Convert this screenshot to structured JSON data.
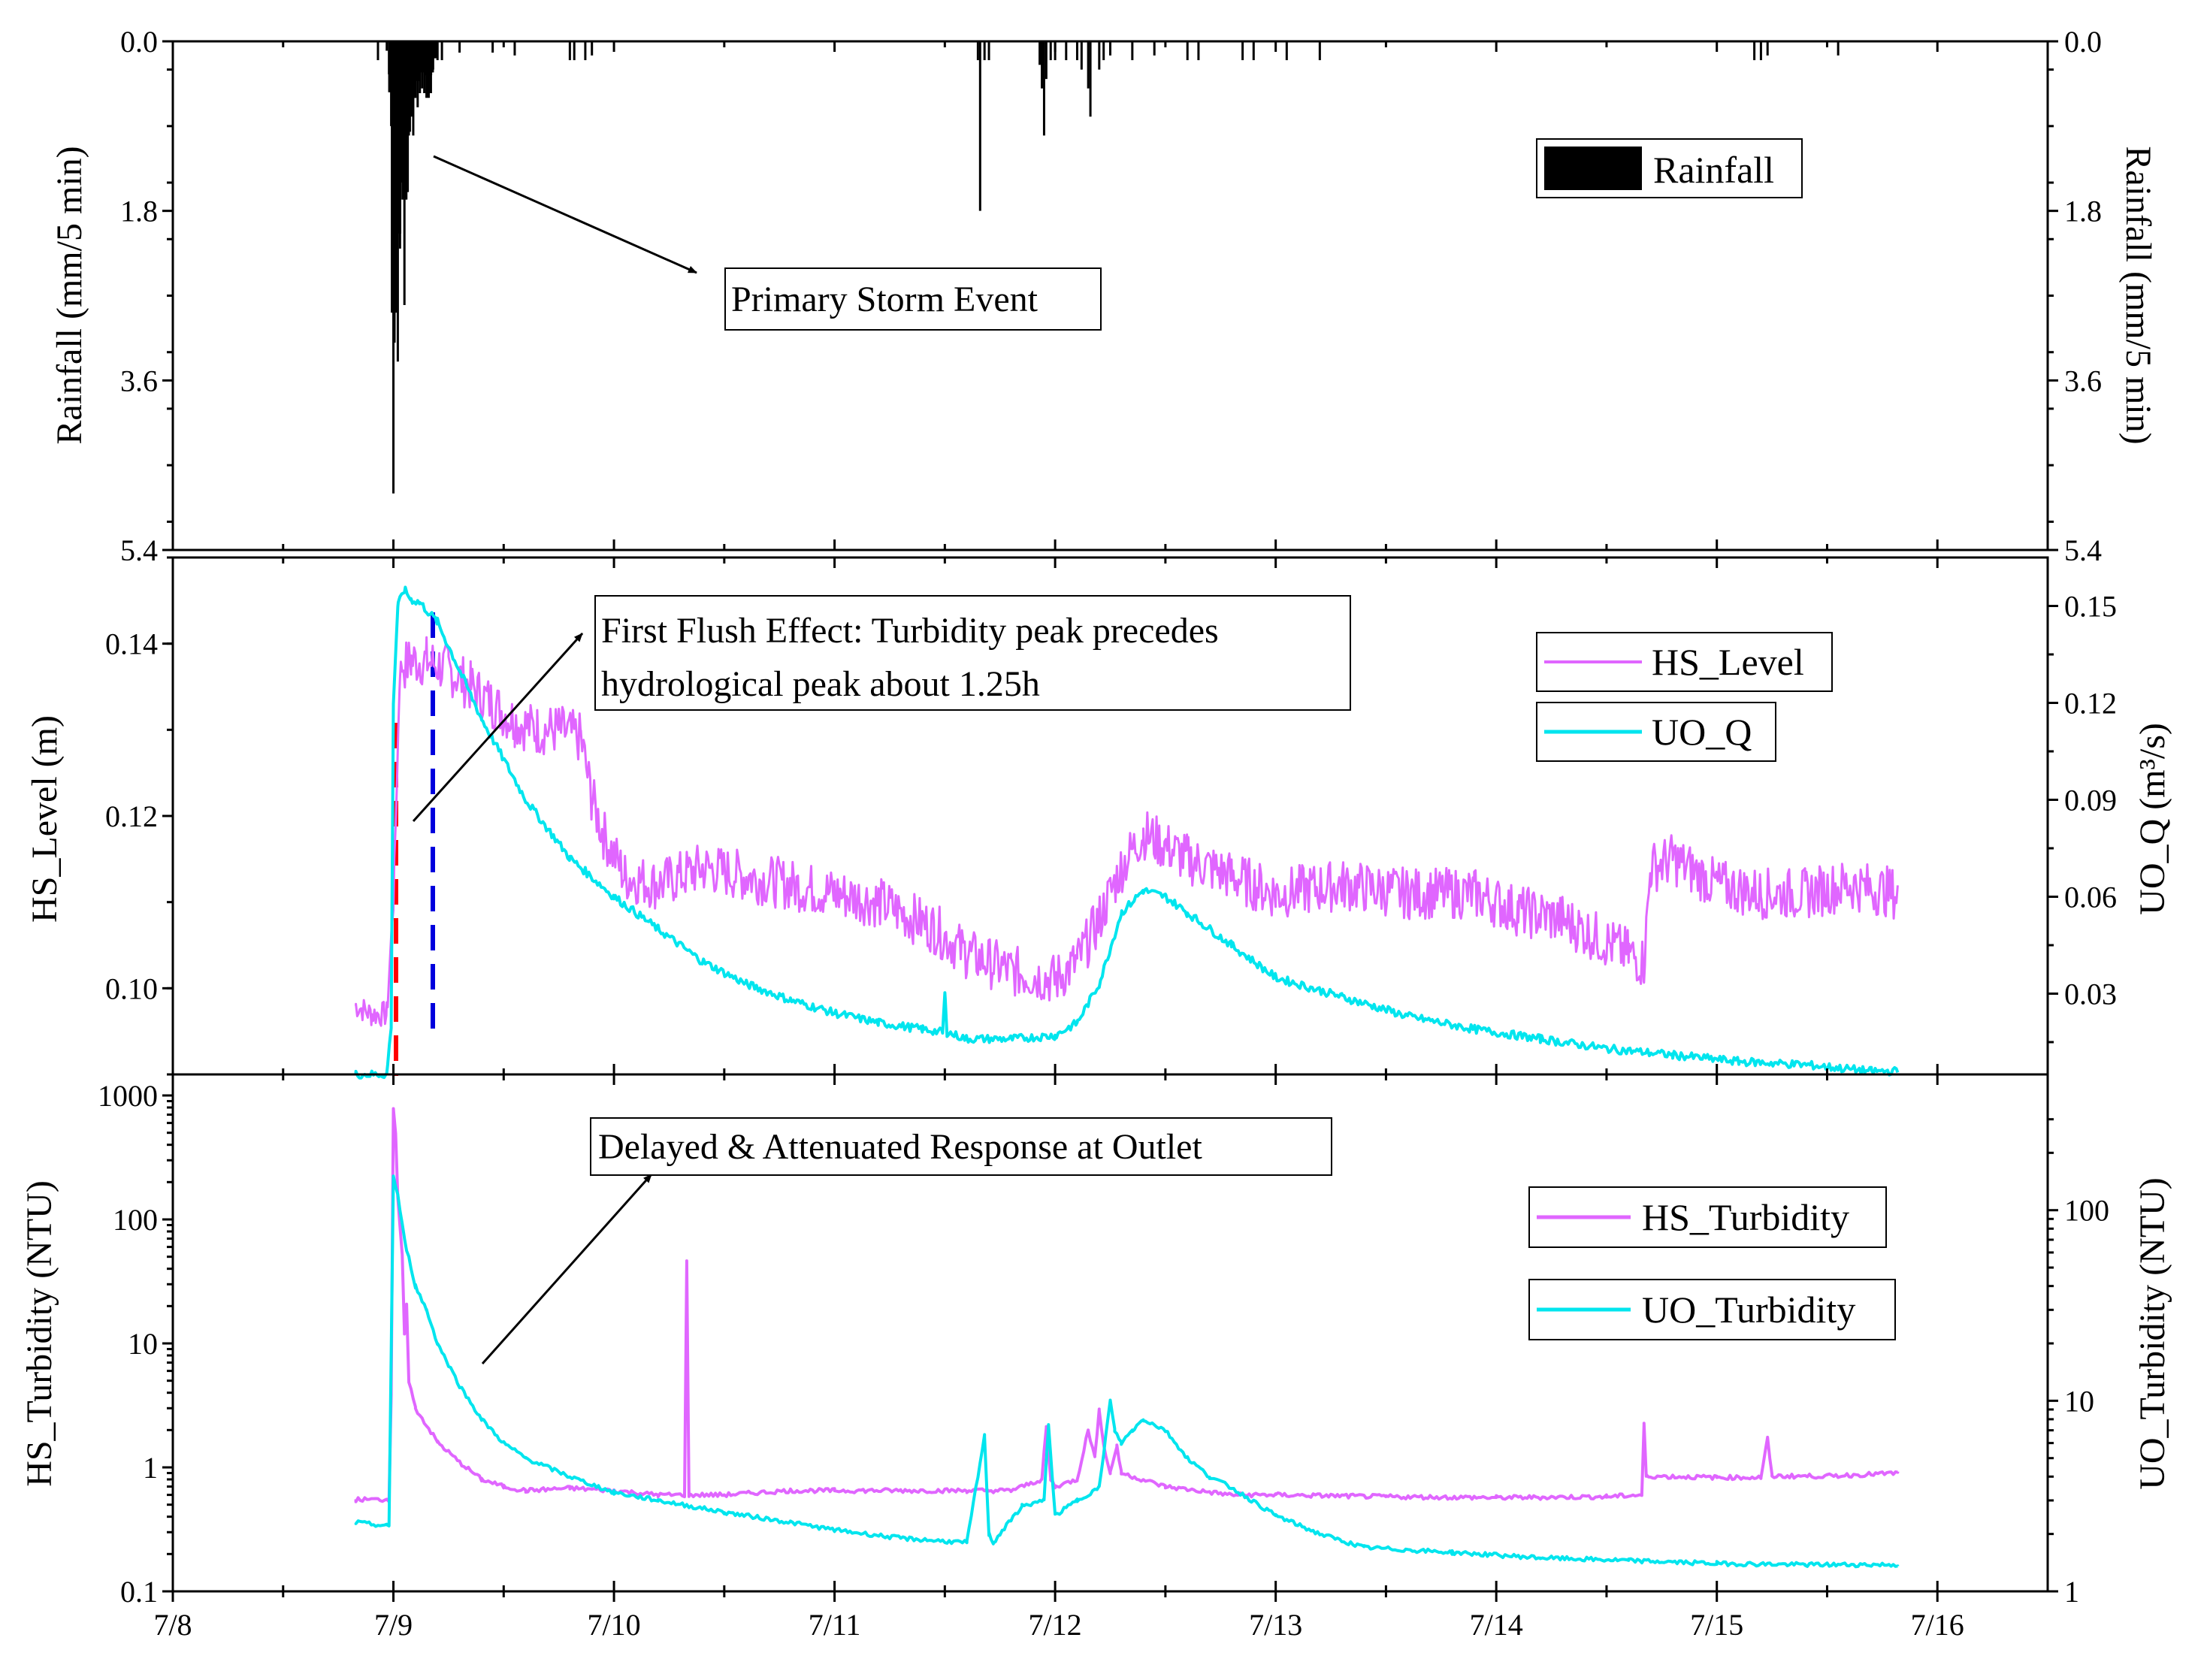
{
  "chart_data": [
    {
      "type": "bar",
      "panel": "rainfall",
      "ylabel_left": "Rainfall (mm/5 min)",
      "ylabel_right": "Rainfall (mm/5 min)",
      "y_reversed": true,
      "ylim": [
        0,
        5.4
      ],
      "yticks": [
        "0.0",
        "1.8",
        "3.6",
        "5.4"
      ],
      "legend": {
        "position": "top-right",
        "entries": [
          {
            "label": "Rainfall",
            "color": "#000000"
          }
        ]
      },
      "annotations": [
        {
          "text": "Primary Storm Event"
        }
      ],
      "series": [
        {
          "name": "Rainfall",
          "color": "#000000",
          "points": [
            [
              8.97,
              0.1
            ],
            [
              8.98,
              0.35
            ],
            [
              8.99,
              0.9
            ],
            [
              9.0,
              4.8
            ],
            [
              9.005,
              3.2
            ],
            [
              9.01,
              2.6
            ],
            [
              9.015,
              2.1
            ],
            [
              9.02,
              3.4
            ],
            [
              9.025,
              1.8
            ],
            [
              9.03,
              2.2
            ],
            [
              9.035,
              1.5
            ],
            [
              9.04,
              1.4
            ],
            [
              9.045,
              1.1
            ],
            [
              9.05,
              2.8
            ],
            [
              9.055,
              1.2
            ],
            [
              9.06,
              0.9
            ],
            [
              9.065,
              1.6
            ],
            [
              9.07,
              1.0
            ],
            [
              9.08,
              0.8
            ],
            [
              9.09,
              1.0
            ],
            [
              9.1,
              0.6
            ],
            [
              9.11,
              0.7
            ],
            [
              9.12,
              0.55
            ],
            [
              9.13,
              0.5
            ],
            [
              9.14,
              0.55
            ],
            [
              9.15,
              0.6
            ],
            [
              9.16,
              0.6
            ],
            [
              9.17,
              0.55
            ],
            [
              9.18,
              0.3
            ],
            [
              9.2,
              0.2
            ],
            [
              9.22,
              0.2
            ],
            [
              8.93,
              0.2
            ],
            [
              9.3,
              0.12
            ],
            [
              9.45,
              0.12
            ],
            [
              9.55,
              0.15
            ],
            [
              9.8,
              0.2
            ],
            [
              9.82,
              0.2
            ],
            [
              9.87,
              0.2
            ],
            [
              9.9,
              0.15
            ],
            [
              11.65,
              0.2
            ],
            [
              11.66,
              1.8
            ],
            [
              11.68,
              0.2
            ],
            [
              11.7,
              0.2
            ],
            [
              11.93,
              0.25
            ],
            [
              11.94,
              0.5
            ],
            [
              11.95,
              1.0
            ],
            [
              11.96,
              0.4
            ],
            [
              11.98,
              0.2
            ],
            [
              12.0,
              0.2
            ],
            [
              12.05,
              0.2
            ],
            [
              12.1,
              0.2
            ],
            [
              12.12,
              0.3
            ],
            [
              12.15,
              0.5
            ],
            [
              12.16,
              0.8
            ],
            [
              12.2,
              0.3
            ],
            [
              12.22,
              0.2
            ],
            [
              12.25,
              0.15
            ],
            [
              12.35,
              0.2
            ],
            [
              12.45,
              0.15
            ],
            [
              12.6,
              0.2
            ],
            [
              12.65,
              0.2
            ],
            [
              12.85,
              0.2
            ],
            [
              12.9,
              0.2
            ],
            [
              13.05,
              0.2
            ],
            [
              13.2,
              0.2
            ],
            [
              15.17,
              0.2
            ],
            [
              15.2,
              0.2
            ],
            [
              15.23,
              0.15
            ],
            [
              15.55,
              0.15
            ]
          ]
        }
      ]
    },
    {
      "type": "line",
      "panel": "level-flow",
      "ylabel_left": "HS_Level (m)",
      "ylabel_right": "UO_Q (m³/s)",
      "ylim_left": [
        0.09,
        0.15
      ],
      "ylim_right": [
        0.005,
        0.165
      ],
      "yticks_left": [
        "0.10",
        "0.12",
        "0.14"
      ],
      "yticks_right": [
        "0.03",
        "0.06",
        "0.09",
        "0.12",
        "0.15"
      ],
      "legend": {
        "position": "top-right",
        "entries": [
          {
            "label": "HS_Level",
            "color": "#e066ff"
          },
          {
            "label": "UO_Q",
            "color": "#00e5ee"
          }
        ]
      },
      "annotations": [
        {
          "text": "First Flush Effect: Turbidity peak precedes hydrological peak about 1.25h"
        }
      ],
      "reference_lines": [
        {
          "x": 9.0,
          "color": "#ff0000"
        },
        {
          "x": 9.17,
          "color": "#0000ff"
        }
      ],
      "series": [
        {
          "name": "HS_Level",
          "axis": "left",
          "color": "#e066ff",
          "x": [
            8.83,
            8.9,
            8.97,
            9.0,
            9.03,
            9.08,
            9.15,
            9.25,
            9.35,
            9.45,
            9.55,
            9.65,
            9.75,
            9.85,
            9.9,
            9.95,
            10.05,
            10.2,
            10.4,
            10.6,
            10.8,
            11.0,
            11.2,
            11.45,
            11.6,
            11.8,
            12.0,
            12.1,
            12.2,
            12.3,
            12.4,
            12.6,
            12.8,
            13.0,
            13.3,
            13.6,
            13.9,
            14.1,
            14.3,
            14.6,
            14.67,
            14.7,
            14.8,
            15.0,
            15.2,
            15.4,
            15.6,
            15.82
          ],
          "y": [
            0.098,
            0.097,
            0.097,
            0.11,
            0.137,
            0.138,
            0.138,
            0.137,
            0.135,
            0.133,
            0.131,
            0.13,
            0.13,
            0.129,
            0.122,
            0.118,
            0.113,
            0.112,
            0.114,
            0.113,
            0.112,
            0.111,
            0.11,
            0.107,
            0.104,
            0.102,
            0.101,
            0.103,
            0.108,
            0.114,
            0.118,
            0.115,
            0.113,
            0.111,
            0.112,
            0.111,
            0.111,
            0.109,
            0.108,
            0.104,
            0.103,
            0.114,
            0.115,
            0.112,
            0.111,
            0.111,
            0.112,
            0.111
          ]
        },
        {
          "name": "UO_Q",
          "axis": "right",
          "color": "#00e5ee",
          "x": [
            8.83,
            8.97,
            8.99,
            9.0,
            9.02,
            9.05,
            9.08,
            9.12,
            9.2,
            9.3,
            9.4,
            9.6,
            9.8,
            10.0,
            10.2,
            10.4,
            10.6,
            10.8,
            11.0,
            11.2,
            11.4,
            11.49,
            11.5,
            11.51,
            11.6,
            11.8,
            12.0,
            12.1,
            12.2,
            12.3,
            12.4,
            12.5,
            12.6,
            12.8,
            13.0,
            13.3,
            13.6,
            13.9,
            14.2,
            14.5,
            14.8,
            15.1,
            15.4,
            15.7,
            15.82
          ],
          "y": [
            0.005,
            0.005,
            0.02,
            0.12,
            0.15,
            0.155,
            0.152,
            0.151,
            0.145,
            0.13,
            0.115,
            0.09,
            0.072,
            0.06,
            0.05,
            0.04,
            0.033,
            0.028,
            0.024,
            0.021,
            0.019,
            0.018,
            0.03,
            0.018,
            0.016,
            0.016,
            0.017,
            0.021,
            0.033,
            0.055,
            0.062,
            0.06,
            0.055,
            0.045,
            0.035,
            0.029,
            0.023,
            0.019,
            0.016,
            0.013,
            0.011,
            0.009,
            0.008,
            0.006,
            0.006
          ]
        }
      ]
    },
    {
      "type": "line",
      "panel": "turbidity",
      "ylabel_left": "HS_Turbidity (NTU)",
      "ylabel_right": "UO_Turbidity (NTU)",
      "yscale_left": "log",
      "yscale_right": "log",
      "ylim_left": [
        0.1,
        1000
      ],
      "ylim_right": [
        1,
        400
      ],
      "yticks_left": [
        "0.1",
        "1",
        "10",
        "100",
        "1000"
      ],
      "yticks_right": [
        "1",
        "10",
        "100"
      ],
      "xlim": [
        8,
        16.5
      ],
      "xticks": [
        "7/8",
        "7/9",
        "7/10",
        "7/11",
        "7/12",
        "7/13",
        "7/14",
        "7/15",
        "7/16"
      ],
      "legend": {
        "position": "right",
        "entries": [
          {
            "label": "HS_Turbidity",
            "color": "#e066ff"
          },
          {
            "label": "UO_Turbidity",
            "color": "#00e5ee"
          }
        ]
      },
      "annotations": [
        {
          "text": "Delayed & Attenuated Response at Outlet"
        }
      ],
      "series": [
        {
          "name": "HS_Turbidity",
          "axis": "left",
          "color": "#e066ff",
          "x": [
            8.83,
            8.98,
            8.99,
            9.0,
            9.01,
            9.02,
            9.04,
            9.05,
            9.06,
            9.07,
            9.1,
            9.2,
            9.3,
            9.4,
            9.5,
            9.6,
            9.8,
            10.0,
            10.2,
            10.32,
            10.33,
            10.34,
            10.5,
            10.8,
            11.0,
            11.3,
            11.6,
            11.8,
            11.94,
            11.96,
            11.98,
            12.0,
            12.1,
            12.15,
            12.18,
            12.2,
            12.22,
            12.25,
            12.28,
            12.3,
            12.5,
            12.8,
            13.0,
            13.5,
            14.0,
            14.5,
            14.66,
            14.67,
            14.68,
            15.0,
            15.2,
            15.23,
            15.25,
            15.5,
            15.82
          ],
          "y": [
            0.55,
            0.55,
            4,
            800,
            500,
            150,
            50,
            12,
            20,
            5,
            3,
            1.6,
            1.1,
            0.8,
            0.7,
            0.65,
            0.68,
            0.65,
            0.6,
            0.6,
            45,
            0.6,
            0.6,
            0.65,
            0.65,
            0.65,
            0.65,
            0.65,
            0.8,
            2.1,
            0.8,
            0.7,
            0.8,
            2.0,
            1.2,
            3.0,
            1.5,
            0.9,
            1.5,
            0.9,
            0.7,
            0.6,
            0.6,
            0.58,
            0.57,
            0.58,
            0.6,
            2.2,
            0.85,
            0.83,
            0.83,
            1.7,
            0.85,
            0.85,
            0.9
          ]
        },
        {
          "name": "UO_Turbidity",
          "axis": "right",
          "color": "#00e5ee",
          "x": [
            8.83,
            8.97,
            8.98,
            9.0,
            9.02,
            9.05,
            9.1,
            9.15,
            9.2,
            9.3,
            9.4,
            9.5,
            9.6,
            9.8,
            10.0,
            10.2,
            10.5,
            10.8,
            11.0,
            11.3,
            11.6,
            11.68,
            11.7,
            11.72,
            11.75,
            11.85,
            11.95,
            11.97,
            12.0,
            12.1,
            12.2,
            12.25,
            12.27,
            12.3,
            12.35,
            12.4,
            12.5,
            12.6,
            12.7,
            12.8,
            13.0,
            13.2,
            13.4,
            13.8,
            14.2,
            14.6,
            15.0,
            15.4,
            15.82
          ],
          "y": [
            2.3,
            2.2,
            2.2,
            150,
            120,
            70,
            40,
            30,
            20,
            12,
            8,
            6,
            5,
            4,
            3.3,
            3,
            2.6,
            2.3,
            2.1,
            1.9,
            1.8,
            6.5,
            2,
            1.8,
            2.0,
            2.8,
            3.0,
            7.5,
            2.5,
            3.0,
            3.5,
            10,
            7,
            6,
            7,
            8,
            7,
            5,
            4,
            3.5,
            2.5,
            2.0,
            1.7,
            1.6,
            1.5,
            1.45,
            1.4,
            1.38,
            1.38
          ]
        }
      ]
    }
  ]
}
